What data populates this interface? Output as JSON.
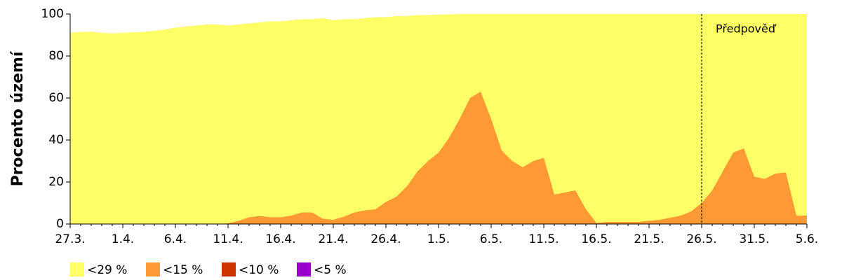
{
  "chart_data": {
    "type": "area",
    "ylabel": "Procento území",
    "categories": [
      "27.3.",
      null,
      null,
      null,
      null,
      "1.4.",
      null,
      null,
      null,
      null,
      "6.4.",
      null,
      null,
      null,
      null,
      "11.4.",
      null,
      null,
      null,
      null,
      "16.4.",
      null,
      null,
      null,
      null,
      "21.4.",
      null,
      null,
      null,
      null,
      "26.4.",
      null,
      null,
      null,
      null,
      "1.5.",
      null,
      null,
      null,
      null,
      "6.5.",
      null,
      null,
      null,
      null,
      "11.5.",
      null,
      null,
      null,
      null,
      "16.5.",
      null,
      null,
      null,
      null,
      "21.5.",
      null,
      null,
      null,
      null,
      "26.5.",
      null,
      null,
      null,
      null,
      "31.5.",
      null,
      null,
      null,
      null,
      "5.6."
    ],
    "series": [
      {
        "name": "<29 %",
        "color": "#ffff66",
        "values": [
          91,
          91.5,
          91.5,
          91,
          90.8,
          91,
          91.3,
          91.5,
          92,
          92.5,
          93.5,
          94,
          94.5,
          95,
          95,
          94.5,
          95,
          95.5,
          96,
          96.5,
          96.5,
          97,
          97.5,
          97.5,
          98,
          97,
          97.5,
          97.5,
          98,
          98.5,
          98.5,
          99,
          99,
          99.5,
          99.5,
          99.7,
          99.8,
          100,
          100,
          100,
          100,
          100,
          100,
          100,
          100,
          100,
          100,
          100,
          100,
          100,
          100,
          100,
          100,
          100,
          100,
          100,
          100,
          100,
          100,
          100,
          100,
          100,
          100,
          100,
          100,
          100,
          100,
          100,
          100,
          100,
          100
        ]
      },
      {
        "name": "<15 %",
        "color": "#ff9933",
        "values": [
          0,
          0,
          0,
          0,
          0,
          0,
          0,
          0,
          0,
          0,
          0,
          0,
          0,
          0,
          0,
          0.3,
          1.5,
          3.2,
          3.8,
          3.2,
          3.2,
          4,
          5.5,
          5.5,
          2.5,
          2,
          3.5,
          5.5,
          6.5,
          7,
          10.5,
          13,
          18,
          25,
          30,
          34,
          41,
          50,
          60,
          63,
          50,
          35,
          30,
          27,
          30,
          31.5,
          14,
          15,
          16,
          7,
          0.5,
          1,
          1,
          1,
          1,
          1.5,
          2,
          3,
          4,
          6,
          10,
          16,
          25,
          34,
          36,
          22.5,
          21.5,
          24,
          24.5,
          4,
          4
        ]
      },
      {
        "name": "<10 %",
        "color": "#cc3300",
        "values": [
          0,
          0,
          0,
          0,
          0,
          0,
          0,
          0,
          0,
          0,
          0,
          0,
          0,
          0,
          0,
          0,
          0,
          0,
          0,
          0,
          0,
          0,
          0,
          0,
          0,
          0,
          0,
          0,
          0,
          0,
          0,
          0,
          0,
          0,
          0,
          0,
          0,
          0,
          0,
          0,
          0,
          0,
          0,
          0,
          0,
          0,
          0,
          0,
          0,
          0,
          0,
          0,
          0,
          0,
          0,
          0,
          0,
          0,
          0,
          0,
          0,
          0,
          0,
          0,
          0,
          0,
          0,
          0,
          0,
          0,
          0
        ]
      },
      {
        "name": "<5 %",
        "color": "#9900cc",
        "values": [
          0,
          0,
          0,
          0,
          0,
          0,
          0,
          0,
          0,
          0,
          0,
          0,
          0,
          0,
          0,
          0,
          0,
          0,
          0,
          0,
          0,
          0,
          0,
          0,
          0,
          0,
          0,
          0,
          0,
          0,
          0,
          0,
          0,
          0,
          0,
          0,
          0,
          0,
          0,
          0,
          0,
          0,
          0,
          0,
          0,
          0,
          0,
          0,
          0,
          0,
          0,
          0,
          0,
          0,
          0,
          0,
          0,
          0,
          0,
          0,
          0,
          0,
          0,
          0,
          0,
          0,
          0,
          0,
          0,
          0,
          0
        ]
      }
    ],
    "ylim": [
      0,
      100
    ],
    "yticks": [
      0,
      20,
      40,
      60,
      80,
      100
    ],
    "grid": false,
    "forecast": {
      "label": "Předpověď",
      "at": "26.5."
    },
    "legend": "bottom"
  }
}
